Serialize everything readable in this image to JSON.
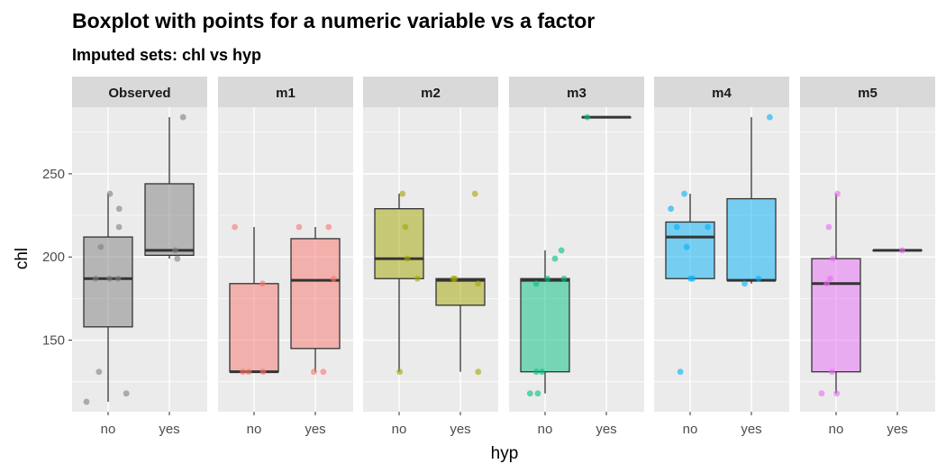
{
  "chart_data": {
    "type": "boxplot",
    "title": "Boxplot with points for a numeric variable vs a factor",
    "subtitle": "Imputed sets:  chl vs hyp",
    "xlabel": "hyp",
    "ylabel": "chl",
    "categories": [
      "no",
      "yes"
    ],
    "ylim": [
      107,
      290
    ],
    "yticks": [
      150,
      200,
      250
    ],
    "grid": true,
    "panels": [
      {
        "name": "Observed",
        "color": "#7f7f7f",
        "boxes": [
          {
            "category": "no",
            "min": 113,
            "q1": 158,
            "median": 187,
            "q3": 212,
            "max": 238
          },
          {
            "category": "yes",
            "min": 199,
            "q1": 201,
            "median": 204,
            "q3": 244,
            "max": 284
          }
        ],
        "points": [
          {
            "category": "no",
            "values": [
              113,
              118,
              131,
              187,
              187,
              187,
              206,
              218,
              229,
              238
            ]
          },
          {
            "category": "yes",
            "values": [
              199,
              204,
              284
            ]
          }
        ]
      },
      {
        "name": "m1",
        "color": "#f8766d",
        "boxes": [
          {
            "category": "no",
            "min": 131,
            "q1": 131,
            "median": 131,
            "q3": 184,
            "max": 218
          },
          {
            "category": "yes",
            "min": 131,
            "q1": 145,
            "median": 186,
            "q3": 211,
            "max": 218
          }
        ],
        "points": [
          {
            "category": "no",
            "values": [
              131,
              131,
              131,
              184,
              218
            ]
          },
          {
            "category": "yes",
            "values": [
              131,
              131,
              187,
              218,
              218
            ]
          }
        ]
      },
      {
        "name": "m2",
        "color": "#a3a500",
        "boxes": [
          {
            "category": "no",
            "min": 131,
            "q1": 187,
            "median": 199,
            "q3": 229,
            "max": 238
          },
          {
            "category": "yes",
            "min": 131,
            "q1": 171,
            "median": 186,
            "q3": 187,
            "max": 187
          }
        ],
        "points": [
          {
            "category": "no",
            "values": [
              131,
              187,
              199,
              218,
              238
            ]
          },
          {
            "category": "yes",
            "values": [
              131,
              184,
              187,
              187,
              238
            ]
          }
        ]
      },
      {
        "name": "m3",
        "color": "#00bf7d",
        "boxes": [
          {
            "category": "no",
            "min": 118,
            "q1": 131,
            "median": 186,
            "q3": 187,
            "max": 204
          },
          {
            "category": "yes",
            "min": 284,
            "q1": 284,
            "median": 284,
            "q3": 284,
            "max": 284
          }
        ],
        "points": [
          {
            "category": "no",
            "values": [
              118,
              118,
              131,
              131,
              184,
              187,
              187,
              199,
              204
            ]
          },
          {
            "category": "yes",
            "values": [
              284
            ]
          }
        ]
      },
      {
        "name": "m4",
        "color": "#00b0f6",
        "boxes": [
          {
            "category": "no",
            "min": 187,
            "q1": 187,
            "median": 212,
            "q3": 221,
            "max": 238
          },
          {
            "category": "yes",
            "min": 184,
            "q1": 186,
            "median": 186,
            "q3": 235,
            "max": 284
          }
        ],
        "points": [
          {
            "category": "no",
            "values": [
              131,
              187,
              187,
              206,
              218,
              218,
              229,
              238
            ]
          },
          {
            "category": "yes",
            "values": [
              184,
              187,
              284
            ]
          }
        ]
      },
      {
        "name": "m5",
        "color": "#e76bf3",
        "boxes": [
          {
            "category": "no",
            "min": 118,
            "q1": 131,
            "median": 184,
            "q3": 199,
            "max": 238
          },
          {
            "category": "yes",
            "min": 204,
            "q1": 204,
            "median": 204,
            "q3": 204,
            "max": 204
          }
        ],
        "points": [
          {
            "category": "no",
            "values": [
              118,
              118,
              131,
              184,
              187,
              199,
              218,
              238
            ]
          },
          {
            "category": "yes",
            "values": [
              204
            ]
          }
        ]
      }
    ]
  }
}
